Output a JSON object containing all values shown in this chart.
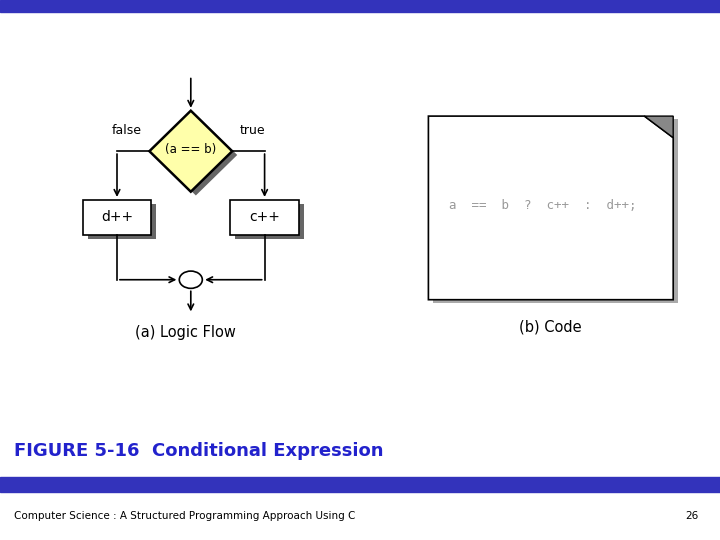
{
  "title_bar_color": "#3333bb",
  "figure_bg": "#ffffff",
  "caption_text": "FIGURE 5-16  Conditional Expression",
  "caption_color": "#2222cc",
  "caption_fontsize": 13,
  "footer_text": "Computer Science : A Structured Programming Approach Using C",
  "footer_page": "26",
  "footer_fontsize": 7.5,
  "diamond_color": "#ffffaa",
  "diamond_edge_color": "#000000",
  "diamond_label": "(a == b)",
  "box_d_label": "d++",
  "box_c_label": "c++",
  "false_label": "false",
  "true_label": "true",
  "logic_flow_label": "(a) Logic Flow",
  "code_label": "(b) Code",
  "code_text": "a  ==  b  ?  c++  :  d++;",
  "box_edge_color": "#000000",
  "box_fill_color": "#ffffff",
  "line_color": "#000000"
}
